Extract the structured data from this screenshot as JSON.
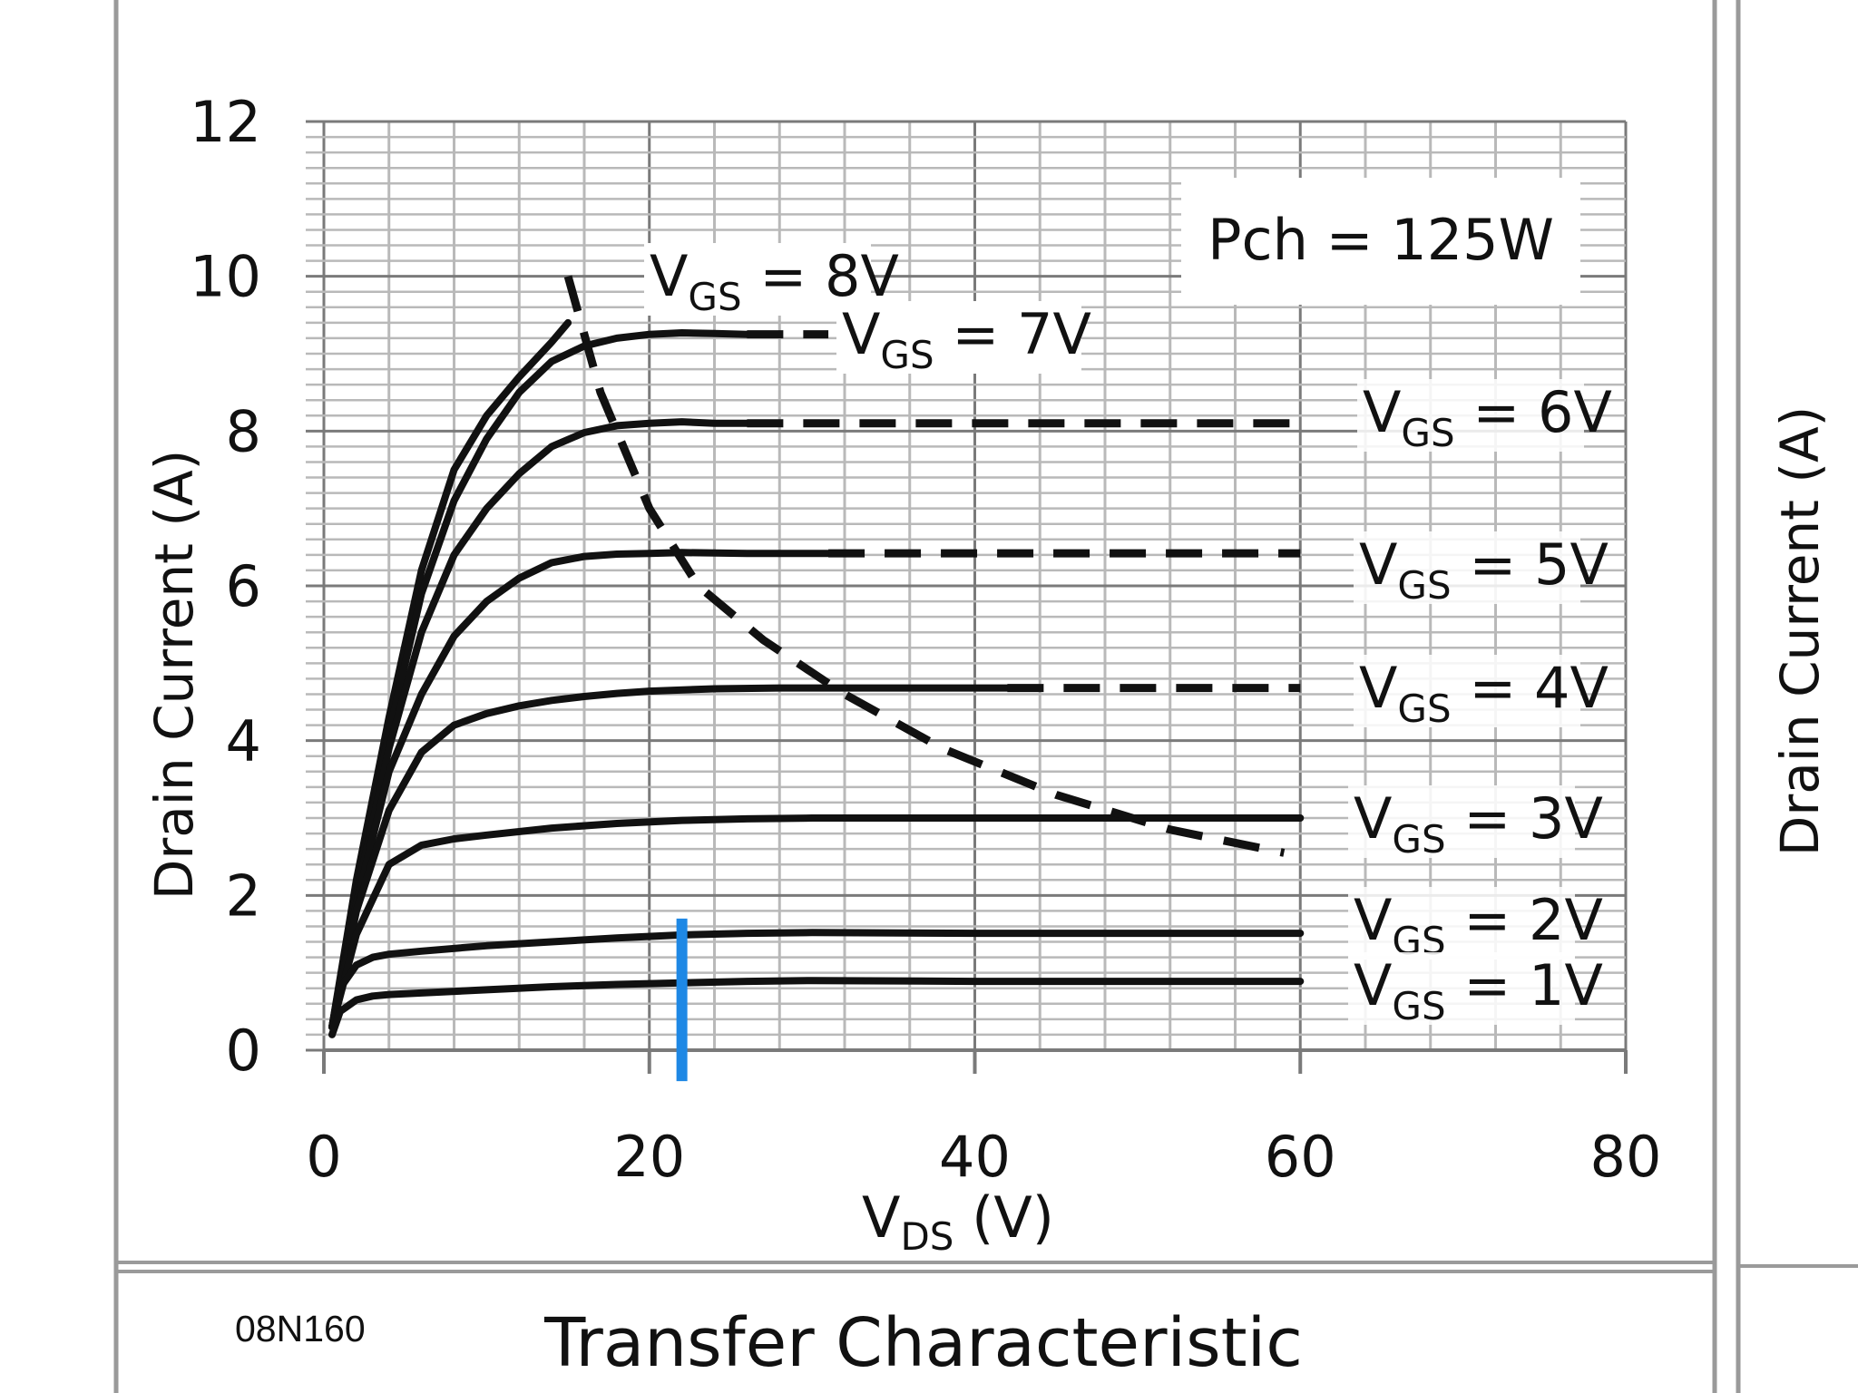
{
  "footer": {
    "part_number": "08N160",
    "section_title": "Transfer Characteristic"
  },
  "right_panel": {
    "ylabel_partial": "Drain Current (A)"
  },
  "colors": {
    "curve": "#111111",
    "grid_major": "#7a7a7a",
    "grid_minor": "#b9b9b9",
    "marker": "#1e88e5",
    "frame": "#9a9a9a"
  },
  "chart_data": {
    "type": "line",
    "title": "",
    "xlabel_main": "V",
    "xlabel_sub": "DS",
    "xlabel_unit": "(V)",
    "ylabel": "Drain Current (A)",
    "xlim": [
      0,
      80
    ],
    "ylim": [
      0,
      12
    ],
    "xticks": [
      0,
      20,
      40,
      60,
      80
    ],
    "yticks": [
      0,
      2,
      4,
      6,
      8,
      10,
      12
    ],
    "grid": true,
    "annotation": "Pch = 125W",
    "series": [
      {
        "name": "VGS = 8V",
        "label_main": "V",
        "label_sub": "GS",
        "label_rest": " = 8V",
        "x": [
          0.5,
          2,
          4,
          6,
          8,
          10,
          12,
          14,
          15
        ],
        "y": [
          0.3,
          2.2,
          4.3,
          6.2,
          7.5,
          8.2,
          8.7,
          9.15,
          9.4
        ],
        "dashed_x": []
      },
      {
        "name": "VGS = 7V",
        "label_main": "V",
        "label_sub": "GS",
        "label_rest": " = 7V",
        "x": [
          0.5,
          2,
          4,
          6,
          8,
          10,
          12,
          14,
          16,
          18,
          20,
          22,
          24,
          26
        ],
        "y": [
          0.3,
          2.1,
          4.1,
          5.9,
          7.1,
          7.9,
          8.5,
          8.9,
          9.1,
          9.2,
          9.25,
          9.27,
          9.26,
          9.25
        ],
        "dashed_x": [
          26,
          31
        ]
      },
      {
        "name": "VGS = 6V",
        "label_main": "V",
        "label_sub": "GS",
        "label_rest": " = 6V",
        "x": [
          0.5,
          2,
          4,
          6,
          8,
          10,
          12,
          14,
          16,
          18,
          20,
          22,
          24,
          26
        ],
        "y": [
          0.3,
          2.0,
          3.9,
          5.4,
          6.4,
          7.0,
          7.45,
          7.8,
          7.98,
          8.07,
          8.1,
          8.12,
          8.1,
          8.1
        ],
        "dashed_x": [
          26,
          60
        ]
      },
      {
        "name": "VGS = 5V",
        "label_main": "V",
        "label_sub": "GS",
        "label_rest": " = 5V",
        "x": [
          0.5,
          2,
          4,
          6,
          8,
          10,
          12,
          14,
          16,
          18,
          20,
          22,
          26,
          31
        ],
        "y": [
          0.3,
          1.9,
          3.6,
          4.6,
          5.35,
          5.8,
          6.1,
          6.3,
          6.38,
          6.41,
          6.42,
          6.43,
          6.42,
          6.42
        ],
        "dashed_x": [
          31,
          60
        ]
      },
      {
        "name": "VGS = 4V",
        "label_main": "V",
        "label_sub": "GS",
        "label_rest": " = 4V",
        "x": [
          0.5,
          2,
          4,
          6,
          8,
          10,
          12,
          14,
          16,
          18,
          20,
          24,
          28,
          34,
          42
        ],
        "y": [
          0.3,
          1.8,
          3.1,
          3.85,
          4.2,
          4.35,
          4.45,
          4.52,
          4.57,
          4.61,
          4.64,
          4.67,
          4.68,
          4.68,
          4.68
        ],
        "dashed_x": [
          42,
          60
        ]
      },
      {
        "name": "VGS = 3V",
        "label_main": "V",
        "label_sub": "GS",
        "label_rest": " = 3V",
        "x": [
          0.5,
          2,
          4,
          6,
          8,
          10,
          14,
          18,
          22,
          26,
          30,
          40,
          50,
          60
        ],
        "y": [
          0.3,
          1.5,
          2.4,
          2.65,
          2.73,
          2.78,
          2.87,
          2.93,
          2.97,
          2.99,
          3.0,
          3.0,
          3.0,
          3.0
        ],
        "dashed_x": []
      },
      {
        "name": "VGS = 2V",
        "label_main": "V",
        "label_sub": "GS",
        "label_rest": " = 2V",
        "x": [
          0.5,
          1,
          2,
          3,
          4,
          6,
          10,
          14,
          18,
          22,
          26,
          30,
          40,
          50,
          60
        ],
        "y": [
          0.3,
          0.8,
          1.1,
          1.2,
          1.24,
          1.28,
          1.35,
          1.4,
          1.45,
          1.49,
          1.51,
          1.52,
          1.51,
          1.51,
          1.51
        ],
        "dashed_x": []
      },
      {
        "name": "VGS = 1V",
        "label_main": "V",
        "label_sub": "GS",
        "label_rest": " = 1V",
        "x": [
          0.5,
          1,
          2,
          3,
          4,
          6,
          10,
          14,
          18,
          22,
          26,
          30,
          40,
          50,
          60
        ],
        "y": [
          0.2,
          0.5,
          0.65,
          0.7,
          0.72,
          0.74,
          0.78,
          0.82,
          0.85,
          0.87,
          0.89,
          0.9,
          0.89,
          0.89,
          0.89
        ],
        "dashed_x": []
      }
    ],
    "limit_curve": {
      "x": [
        15,
        17,
        20,
        23,
        27,
        32,
        38,
        45,
        52,
        59
      ],
      "y": [
        10.0,
        8.5,
        7.0,
        6.0,
        5.3,
        4.6,
        3.9,
        3.3,
        2.85,
        2.55
      ]
    },
    "marker_line": {
      "x": 22,
      "y_from": -0.4,
      "y_to": 1.7
    }
  }
}
